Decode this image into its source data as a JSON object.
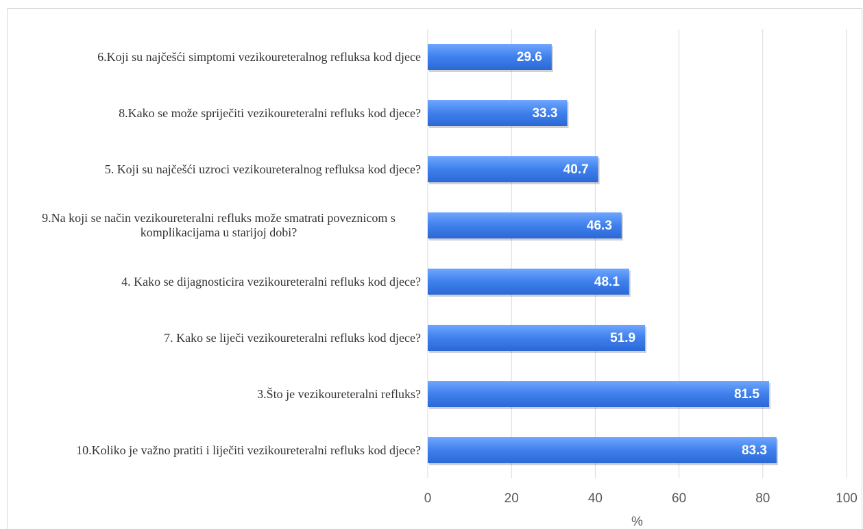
{
  "chart_data": {
    "type": "barh",
    "categories": [
      "6.Koji su najčešći simptomi vezikoureteralnog refluksa kod djece",
      "8.Kako se može spriječiti vezikoureteralni refluks kod djece?",
      "5. Koji su najčešći uzroci vezikoureteralnog refluksa kod djece?",
      "9.Na koji se način vezikoureteralni refluks može smatrati poveznicom s komplikacijama u starijoj dobi?",
      "4. Kako se dijagnosticira vezikoureteralni refluks kod djece?",
      "7. Kako se liječi vezikoureteralni refluks kod djece?",
      "3.Što je vezikoureteralni refluks?",
      "10.Koliko je važno pratiti i liječiti vezikoureteralni refluks kod djece?"
    ],
    "values": [
      29.6,
      33.3,
      40.7,
      46.3,
      48.1,
      51.9,
      81.5,
      83.3
    ],
    "color": "#3f80ec",
    "xlabel": "%",
    "xlim": [
      0,
      100
    ],
    "xticks": [
      0,
      20,
      40,
      60,
      80,
      100
    ],
    "grid": true
  }
}
